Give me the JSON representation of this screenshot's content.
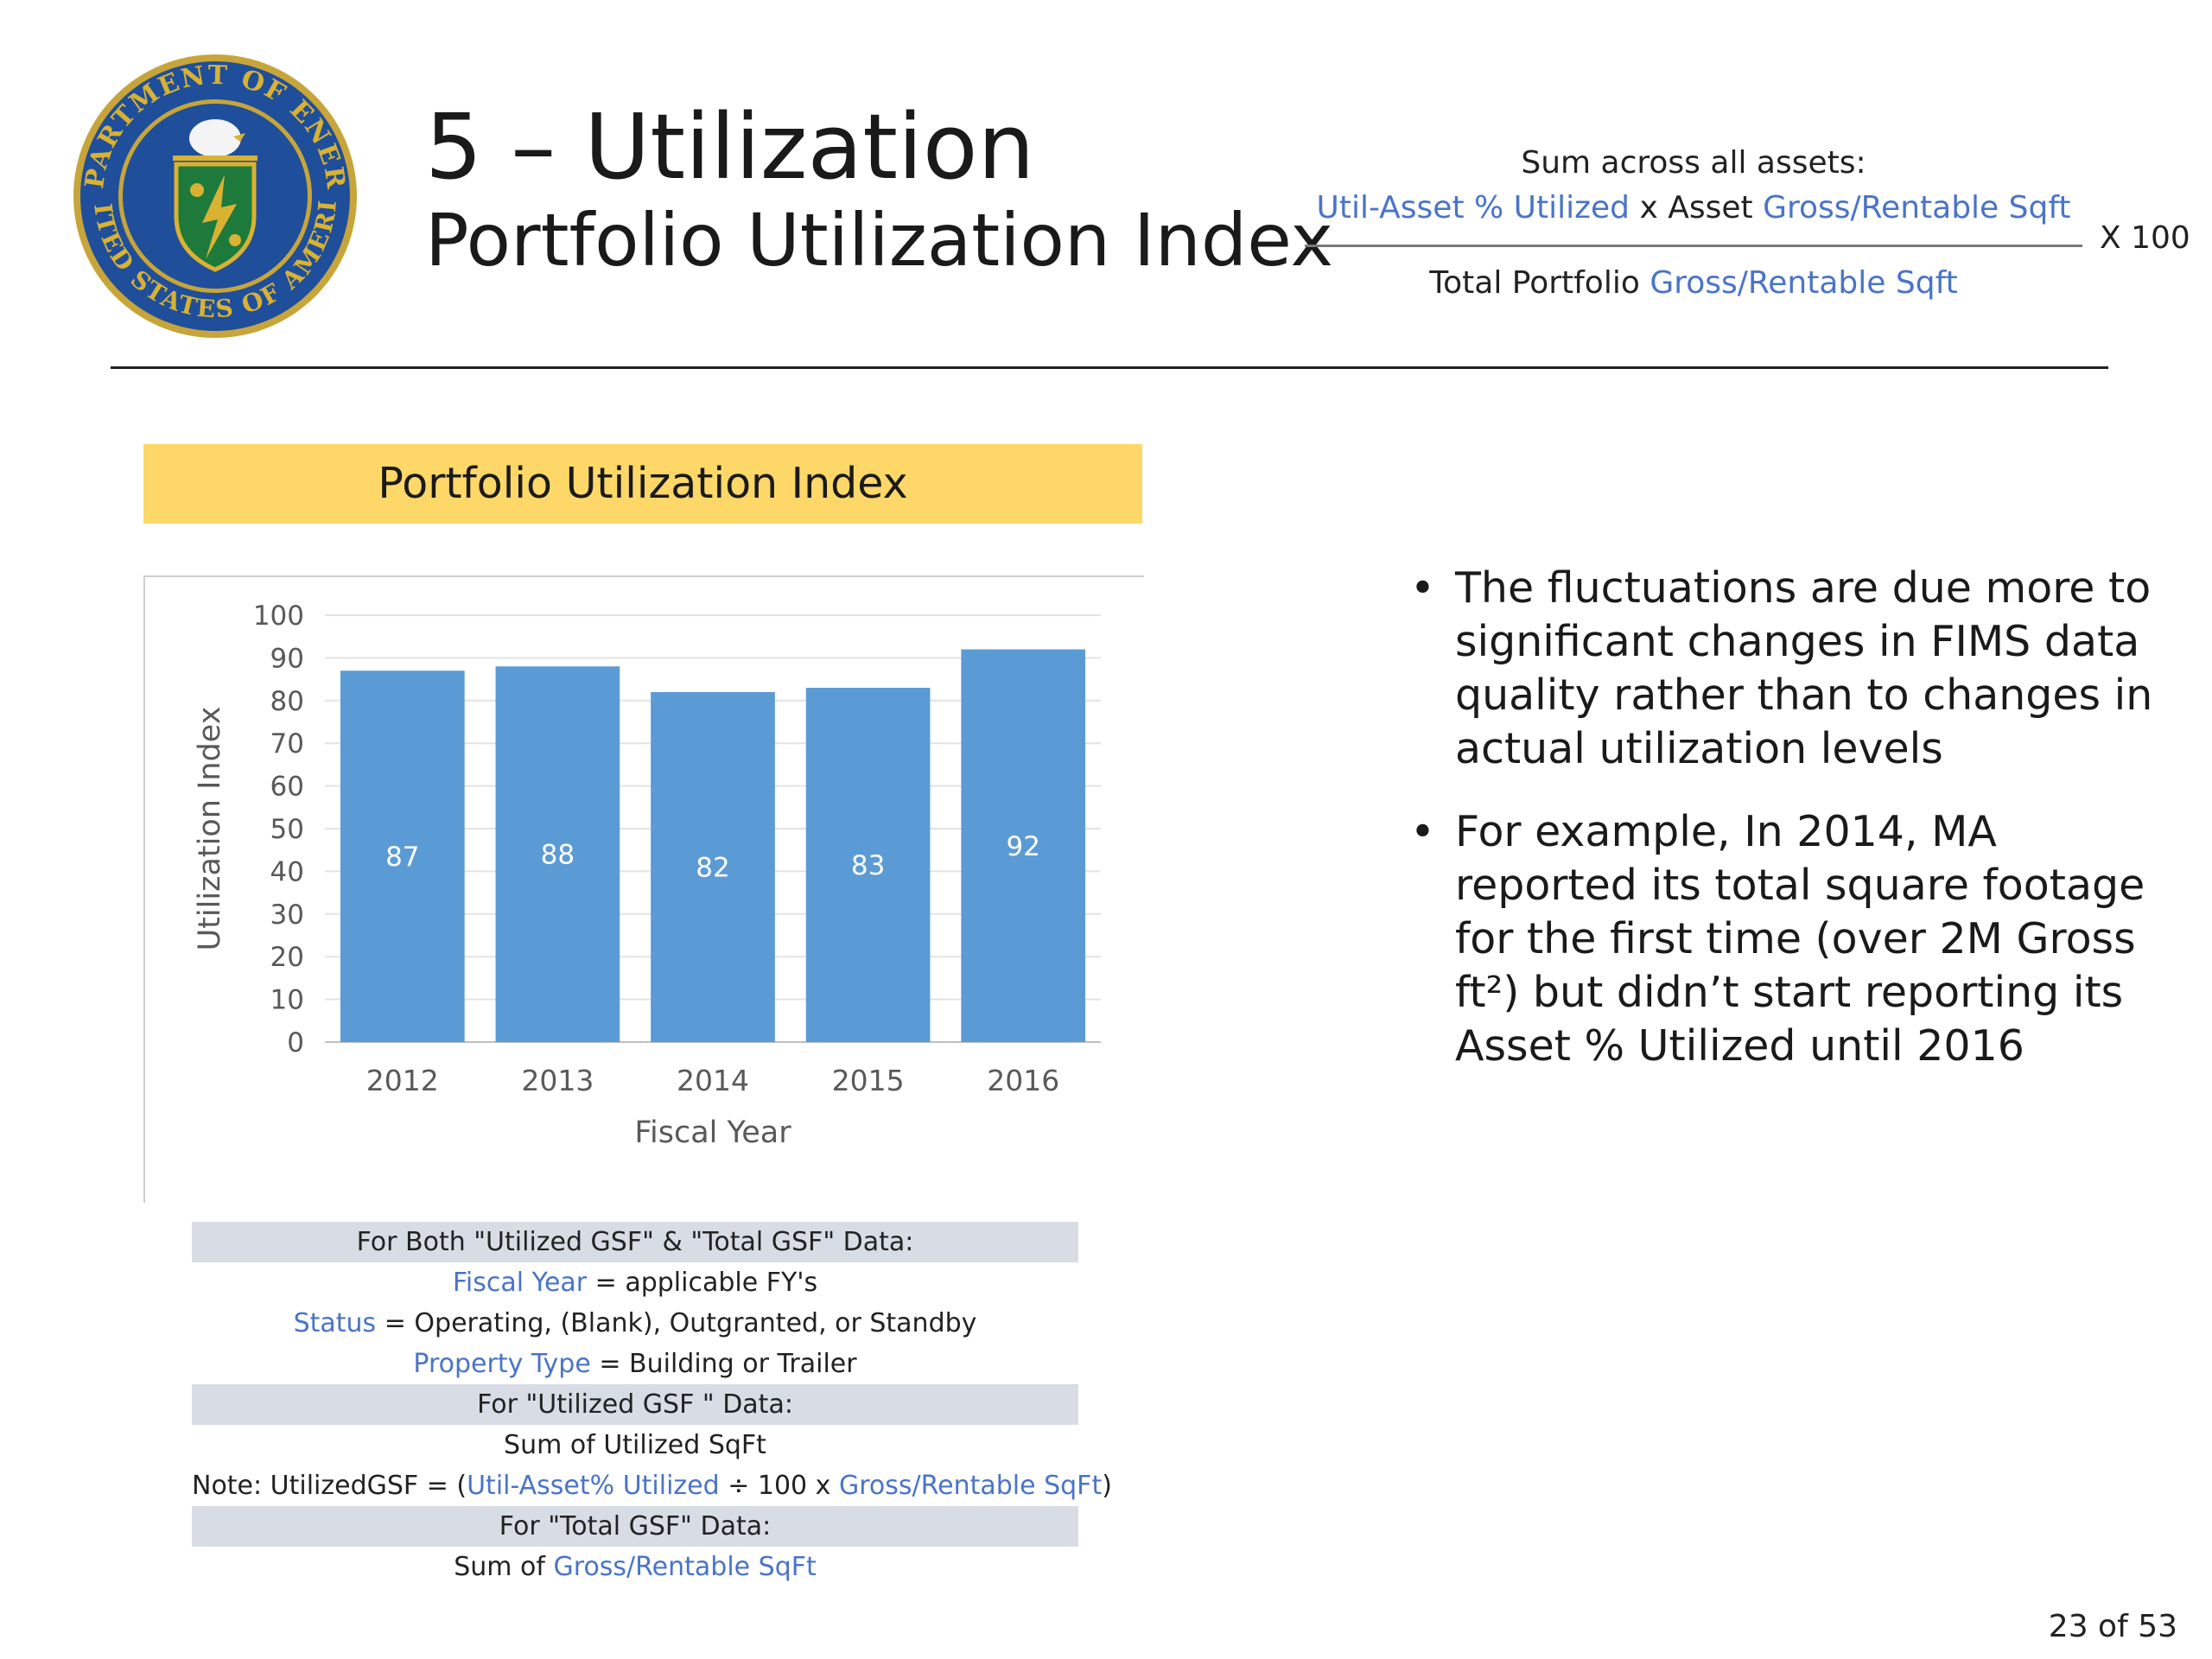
{
  "header": {
    "title": "5 – Utilization",
    "subtitle": "Portfolio Utilization Index",
    "formula": {
      "lead": "Sum across all assets:",
      "numerator": [
        "Util-Asset % Utilized",
        " x ",
        "Asset ",
        "Gross/Rentable Sqft"
      ],
      "denominator": [
        "Total Portfolio ",
        "Gross/Rentable Sqft"
      ],
      "multiplier": "X 100"
    }
  },
  "seal": {
    "ring_text_top": "DEPARTMENT OF ENERGY",
    "ring_text_bottom": "UNITED STATES OF AMERICA",
    "colors": {
      "ring": "#1f4f9a",
      "rim": "#c7a53a",
      "shield": "#1e7a3a",
      "gold": "#d9b233"
    }
  },
  "chart_banner": "Portfolio Utilization Index",
  "chart_data": {
    "type": "bar",
    "title": "Portfolio Utilization Index",
    "categories": [
      "2012",
      "2013",
      "2014",
      "2015",
      "2016"
    ],
    "values": [
      87,
      88,
      82,
      83,
      92
    ],
    "value_labels": [
      "87",
      "88",
      "82",
      "83",
      "92"
    ],
    "xlabel": "Fiscal Year",
    "ylabel": "Utilization Index",
    "ylim": [
      0,
      100
    ],
    "yticks": [
      "0",
      "10",
      "20",
      "30",
      "40",
      "50",
      "60",
      "70",
      "80",
      "90",
      "100"
    ],
    "grid": true,
    "bar_color": "#5b9bd5"
  },
  "criteria": [
    {
      "shaded": true,
      "parts": [
        {
          "t": "For Both \"Utilized GSF\" & \"Total GSF\" Data:"
        }
      ]
    },
    {
      "shaded": false,
      "parts": [
        {
          "t": "Fiscal Year",
          "blue": true
        },
        {
          "t": " = applicable FY's"
        }
      ]
    },
    {
      "shaded": false,
      "parts": [
        {
          "t": "Status",
          "blue": true
        },
        {
          "t": " = Operating, (Blank), Outgranted, or Standby"
        }
      ]
    },
    {
      "shaded": false,
      "parts": [
        {
          "t": "Property Type",
          "blue": true
        },
        {
          "t": " = Building or Trailer"
        }
      ]
    },
    {
      "shaded": true,
      "parts": [
        {
          "t": "For \"Utilized GSF \" Data:"
        }
      ]
    },
    {
      "shaded": false,
      "parts": [
        {
          "t": "Sum of Utilized SqFt"
        }
      ]
    },
    {
      "shaded": false,
      "parts": [
        {
          "t": "Note: UtilizedGSF = ("
        },
        {
          "t": "Util-Asset% Utilized",
          "blue": true
        },
        {
          "t": " ÷ 100 x "
        },
        {
          "t": "Gross/Rentable SqFt",
          "blue": true
        },
        {
          "t": ")"
        }
      ]
    },
    {
      "shaded": true,
      "parts": [
        {
          "t": "For \"Total GSF\" Data:"
        }
      ]
    },
    {
      "shaded": false,
      "parts": [
        {
          "t": "Sum of "
        },
        {
          "t": "Gross/Rentable SqFt",
          "blue": true
        }
      ]
    }
  ],
  "bullets": [
    "The fluctuations are due more to significant changes in FIMS data quality rather than to changes in actual utilization levels",
    "For example, In 2014, MA reported its total square footage for the first time (over 2M Gross ft²) but didn’t start reporting its Asset % Utilized until 2016"
  ],
  "page_number": "23 of 53"
}
